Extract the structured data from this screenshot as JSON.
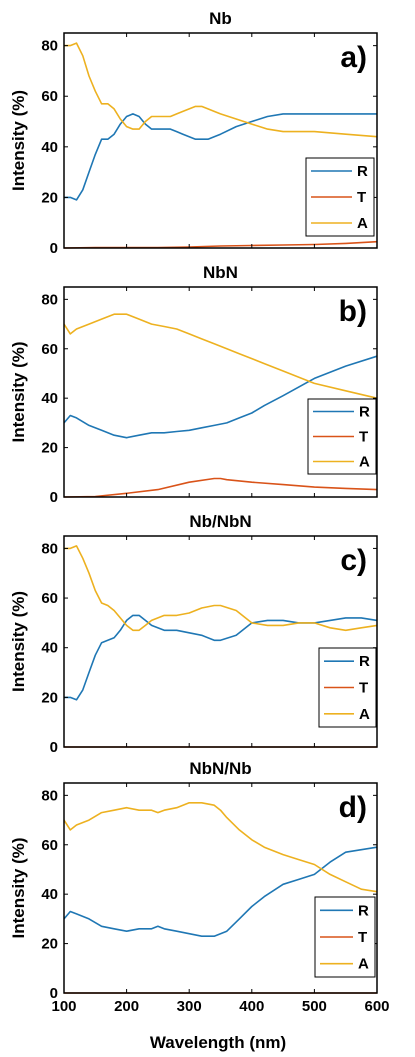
{
  "figure": {
    "x_axis_label": "Wavelength (nm)"
  },
  "colors": {
    "R": "#1f77b4",
    "T": "#d95319",
    "A": "#edb120"
  },
  "chart_data": [
    {
      "type": "line",
      "title": "Nb",
      "panel_label": "a)",
      "ylabel": "Intensity (%)",
      "xlim": [
        100,
        600
      ],
      "ylim": [
        0,
        85
      ],
      "xticks": [
        100,
        200,
        300,
        400,
        500,
        600
      ],
      "yticks": [
        0,
        20,
        40,
        60,
        80
      ],
      "legend_position": "right-middle",
      "series": [
        {
          "name": "R",
          "x": [
            100,
            110,
            120,
            130,
            140,
            150,
            160,
            170,
            180,
            190,
            200,
            210,
            220,
            230,
            240,
            250,
            260,
            270,
            280,
            290,
            300,
            310,
            320,
            330,
            340,
            350,
            375,
            400,
            425,
            450,
            475,
            500,
            550,
            600
          ],
          "y": [
            20,
            20,
            19,
            23,
            30,
            37,
            43,
            43,
            45,
            49,
            52,
            53,
            52,
            49,
            47,
            47,
            47,
            47,
            46,
            45,
            44,
            43,
            43,
            43,
            44,
            45,
            48,
            50,
            52,
            53,
            53,
            53,
            53,
            53
          ]
        },
        {
          "name": "T",
          "x": [
            100,
            150,
            200,
            250,
            300,
            350,
            400,
            450,
            500,
            550,
            600
          ],
          "y": [
            0,
            0.2,
            0.2,
            0.2,
            0.4,
            0.8,
            1,
            1.2,
            1.4,
            1.8,
            2.5
          ]
        },
        {
          "name": "A",
          "x": [
            100,
            110,
            120,
            130,
            140,
            150,
            160,
            170,
            180,
            190,
            200,
            210,
            220,
            230,
            240,
            250,
            260,
            270,
            280,
            290,
            300,
            310,
            320,
            330,
            340,
            350,
            375,
            400,
            425,
            450,
            475,
            500,
            550,
            600
          ],
          "y": [
            80,
            80,
            81,
            76,
            68,
            62,
            57,
            57,
            55,
            51,
            48,
            47,
            47,
            50,
            52,
            52,
            52,
            52,
            53,
            54,
            55,
            56,
            56,
            55,
            54,
            53,
            51,
            49,
            47,
            46,
            46,
            46,
            45,
            44
          ]
        }
      ]
    },
    {
      "type": "line",
      "title": "NbN",
      "panel_label": "b)",
      "ylabel": "Intensity (%)",
      "xlim": [
        100,
        600
      ],
      "ylim": [
        0,
        85
      ],
      "xticks": [
        100,
        200,
        300,
        400,
        500,
        600
      ],
      "yticks": [
        0,
        20,
        40,
        60,
        80
      ],
      "legend_position": "bottom-right",
      "series": [
        {
          "name": "R",
          "x": [
            100,
            110,
            120,
            140,
            160,
            180,
            200,
            220,
            240,
            250,
            260,
            280,
            300,
            320,
            340,
            360,
            380,
            400,
            420,
            450,
            500,
            550,
            600
          ],
          "y": [
            30,
            33,
            32,
            29,
            27,
            25,
            24,
            25,
            26,
            26,
            26,
            26.5,
            27,
            28,
            29,
            30,
            32,
            34,
            37,
            41,
            48,
            53,
            57
          ]
        },
        {
          "name": "T",
          "x": [
            100,
            150,
            200,
            250,
            300,
            340,
            350,
            360,
            400,
            450,
            500,
            550,
            600
          ],
          "y": [
            0,
            0.2,
            1.5,
            3,
            6,
            7.5,
            7.5,
            7,
            6,
            5,
            4,
            3.5,
            3
          ]
        },
        {
          "name": "A",
          "x": [
            100,
            110,
            120,
            140,
            160,
            180,
            200,
            220,
            240,
            260,
            280,
            300,
            320,
            340,
            360,
            380,
            400,
            420,
            450,
            500,
            550,
            600
          ],
          "y": [
            70,
            66,
            68,
            70,
            72,
            74,
            74,
            72,
            70,
            69,
            68,
            66,
            64,
            62,
            60,
            58,
            56,
            54,
            51,
            46,
            43,
            40
          ]
        }
      ]
    },
    {
      "type": "line",
      "title": "Nb/NbN",
      "panel_label": "c)",
      "ylabel": "Intensity (%)",
      "xlim": [
        100,
        600
      ],
      "ylim": [
        0,
        85
      ],
      "xticks": [
        100,
        200,
        300,
        400,
        500,
        600
      ],
      "yticks": [
        0,
        20,
        40,
        60,
        80
      ],
      "legend_position": "bottom-right",
      "series": [
        {
          "name": "R",
          "x": [
            100,
            110,
            120,
            130,
            140,
            150,
            160,
            170,
            180,
            190,
            200,
            210,
            220,
            230,
            240,
            260,
            280,
            300,
            320,
            340,
            350,
            375,
            400,
            425,
            450,
            475,
            500,
            525,
            550,
            575,
            600
          ],
          "y": [
            20,
            20,
            19,
            23,
            30,
            37,
            42,
            43,
            44,
            47,
            51,
            53,
            53,
            51,
            49,
            47,
            47,
            46,
            45,
            43,
            43,
            45,
            50,
            51,
            51,
            50,
            50,
            51,
            52,
            52,
            51
          ]
        },
        {
          "name": "T",
          "x": [
            100,
            300,
            600
          ],
          "y": [
            0,
            0,
            0
          ]
        },
        {
          "name": "A",
          "x": [
            100,
            110,
            120,
            130,
            140,
            150,
            160,
            170,
            180,
            190,
            200,
            210,
            220,
            230,
            240,
            260,
            280,
            300,
            320,
            340,
            350,
            375,
            400,
            425,
            450,
            475,
            500,
            525,
            550,
            575,
            600
          ],
          "y": [
            80,
            80,
            81,
            76,
            70,
            63,
            58,
            57,
            55,
            52,
            49,
            47,
            47,
            49,
            51,
            53,
            53,
            54,
            56,
            57,
            57,
            55,
            50,
            49,
            49,
            50,
            50,
            48,
            47,
            48,
            49
          ]
        }
      ]
    },
    {
      "type": "line",
      "title": "NbN/Nb",
      "panel_label": "d)",
      "ylabel": "Intensity (%)",
      "xlim": [
        100,
        600
      ],
      "ylim": [
        0,
        85
      ],
      "xticks": [
        100,
        200,
        300,
        400,
        500,
        600
      ],
      "yticks": [
        0,
        20,
        40,
        60,
        80
      ],
      "xlabel": "Wavelength (nm)",
      "legend_position": "bottom-right",
      "series": [
        {
          "name": "R",
          "x": [
            100,
            110,
            120,
            140,
            160,
            180,
            200,
            220,
            240,
            250,
            260,
            280,
            300,
            320,
            340,
            350,
            360,
            380,
            400,
            420,
            450,
            475,
            500,
            525,
            550,
            575,
            600
          ],
          "y": [
            30,
            33,
            32,
            30,
            27,
            26,
            25,
            26,
            26,
            27,
            26,
            25,
            24,
            23,
            23,
            24,
            25,
            30,
            35,
            39,
            44,
            46,
            48,
            53,
            57,
            58,
            59
          ]
        },
        {
          "name": "T",
          "x": [
            100,
            300,
            600
          ],
          "y": [
            0,
            0,
            0
          ]
        },
        {
          "name": "A",
          "x": [
            100,
            110,
            120,
            140,
            160,
            180,
            200,
            220,
            240,
            250,
            260,
            280,
            300,
            320,
            340,
            350,
            360,
            380,
            400,
            420,
            450,
            475,
            500,
            525,
            550,
            575,
            600
          ],
          "y": [
            70,
            66,
            68,
            70,
            73,
            74,
            75,
            74,
            74,
            73,
            74,
            75,
            77,
            77,
            76,
            74,
            71,
            66,
            62,
            59,
            56,
            54,
            52,
            48,
            45,
            42,
            41
          ]
        }
      ]
    }
  ]
}
